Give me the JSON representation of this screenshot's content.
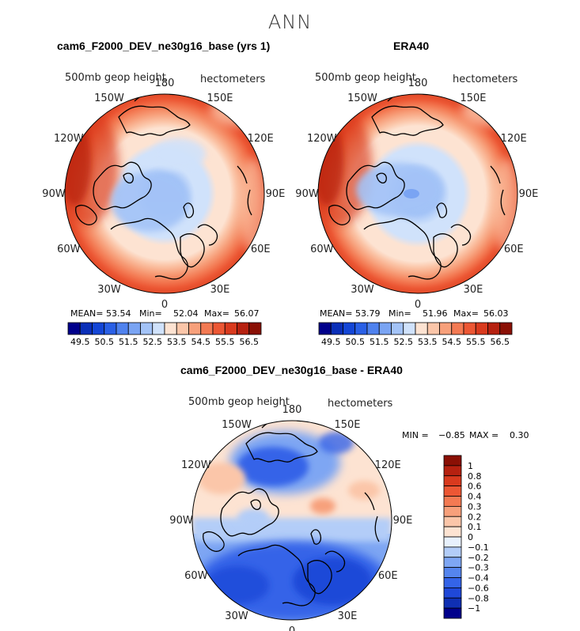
{
  "page": {
    "title": "ANN"
  },
  "chart_data": [
    {
      "type": "heatmap",
      "projection": "polar stereographic (north pole)",
      "title": "cam6_F2000_DEV_ne30g16_base (yrs 1)",
      "variable": "500mb geop height",
      "units": "hectometers",
      "longitude_labels": [
        "180",
        "150E",
        "120E",
        "90E",
        "60E",
        "30E",
        "0",
        "30W",
        "60W",
        "90W",
        "120W",
        "150W"
      ],
      "stats": {
        "mean_label": "MEAN=",
        "mean": "53.54",
        "min_label": "Min=",
        "min": "52.04",
        "max_label": "Max=",
        "max": "56.07"
      },
      "colorbar": {
        "orientation": "horizontal",
        "colors": [
          "#00008b",
          "#0a2fb8",
          "#1446d6",
          "#2a60e6",
          "#4f82ee",
          "#7aa4f3",
          "#a3c3f7",
          "#d0e2fb",
          "#fde3d2",
          "#fbc6a9",
          "#f7a07b",
          "#f37a53",
          "#ec5734",
          "#d93a1e",
          "#b62110",
          "#8a1005"
        ],
        "tick_labels": [
          "49.5",
          "50.5",
          "51.5",
          "52.5",
          "53.5",
          "54.5",
          "55.5",
          "56.5"
        ]
      }
    },
    {
      "type": "heatmap",
      "projection": "polar stereographic (north pole)",
      "title": "ERA40",
      "variable": "500mb geop height",
      "units": "hectometers",
      "longitude_labels": [
        "180",
        "150E",
        "120E",
        "90E",
        "60E",
        "30E",
        "0",
        "30W",
        "60W",
        "90W",
        "120W",
        "150W"
      ],
      "stats": {
        "mean_label": "MEAN=",
        "mean": "53.79",
        "min_label": "Min=",
        "min": "51.96",
        "max_label": "Max=",
        "max": "56.03"
      },
      "colorbar": {
        "orientation": "horizontal",
        "colors": [
          "#00008b",
          "#0a2fb8",
          "#1446d6",
          "#2a60e6",
          "#4f82ee",
          "#7aa4f3",
          "#a3c3f7",
          "#d0e2fb",
          "#fde3d2",
          "#fbc6a9",
          "#f7a07b",
          "#f37a53",
          "#ec5734",
          "#d93a1e",
          "#b62110",
          "#8a1005"
        ],
        "tick_labels": [
          "49.5",
          "50.5",
          "51.5",
          "52.5",
          "53.5",
          "54.5",
          "55.5",
          "56.5"
        ]
      }
    },
    {
      "type": "heatmap",
      "projection": "polar stereographic (north pole)",
      "title": "cam6_F2000_DEV_ne30g16_base - ERA40",
      "variable": "500mb geop height",
      "units": "hectometers",
      "longitude_labels": [
        "180",
        "150E",
        "120E",
        "90E",
        "60E",
        "30E",
        "0",
        "30W",
        "60W",
        "90W",
        "120W",
        "150W"
      ],
      "stats": {
        "min_label": "MIN =",
        "min": "−0.85",
        "max_label": "MAX =",
        "max": "0.30"
      },
      "colorbar": {
        "orientation": "vertical",
        "colors": [
          "#8a1005",
          "#b62110",
          "#d93a1e",
          "#ec5734",
          "#f37a53",
          "#f7a07b",
          "#fbc6a9",
          "#fde3d2",
          "#e8f1fd",
          "#b3cdf8",
          "#7ea6f3",
          "#5585ee",
          "#3464e8",
          "#1f48d8",
          "#0f2fb3",
          "#00008b"
        ],
        "tick_labels": [
          "1",
          "0.8",
          "0.6",
          "0.4",
          "0.3",
          "0.2",
          "0.1",
          "0",
          "−0.1",
          "−0.2",
          "−0.3",
          "−0.4",
          "−0.6",
          "−0.8",
          "−1"
        ]
      }
    }
  ]
}
